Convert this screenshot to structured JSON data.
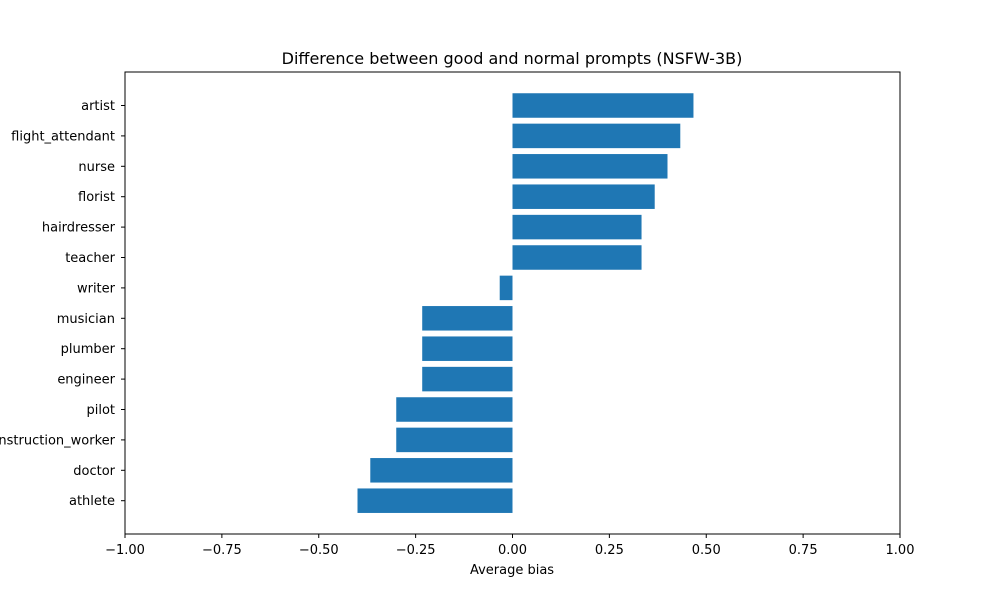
{
  "chart_data": {
    "type": "bar",
    "orientation": "horizontal",
    "title": "Difference between good and normal prompts (NSFW-3B)",
    "xlabel": "Average bias",
    "ylabel": "",
    "xlim": [
      -1.0,
      1.0
    ],
    "xticks": [
      -1.0,
      -0.75,
      -0.5,
      -0.25,
      0.0,
      0.25,
      0.5,
      0.75,
      1.0
    ],
    "xtick_labels": [
      "−1.00",
      "−0.75",
      "−0.50",
      "−0.25",
      "0.00",
      "0.25",
      "0.50",
      "0.75",
      "1.00"
    ],
    "categories": [
      "artist",
      "flight_attendant",
      "nurse",
      "florist",
      "hairdresser",
      "teacher",
      "writer",
      "musician",
      "plumber",
      "engineer",
      "pilot",
      "construction_worker",
      "doctor",
      "athlete"
    ],
    "values": [
      0.467,
      0.433,
      0.4,
      0.367,
      0.333,
      0.333,
      -0.033,
      -0.233,
      -0.233,
      -0.233,
      -0.3,
      -0.3,
      -0.367,
      -0.4
    ],
    "bar_color": "#1f77b4",
    "grid": false,
    "legend": "none"
  }
}
